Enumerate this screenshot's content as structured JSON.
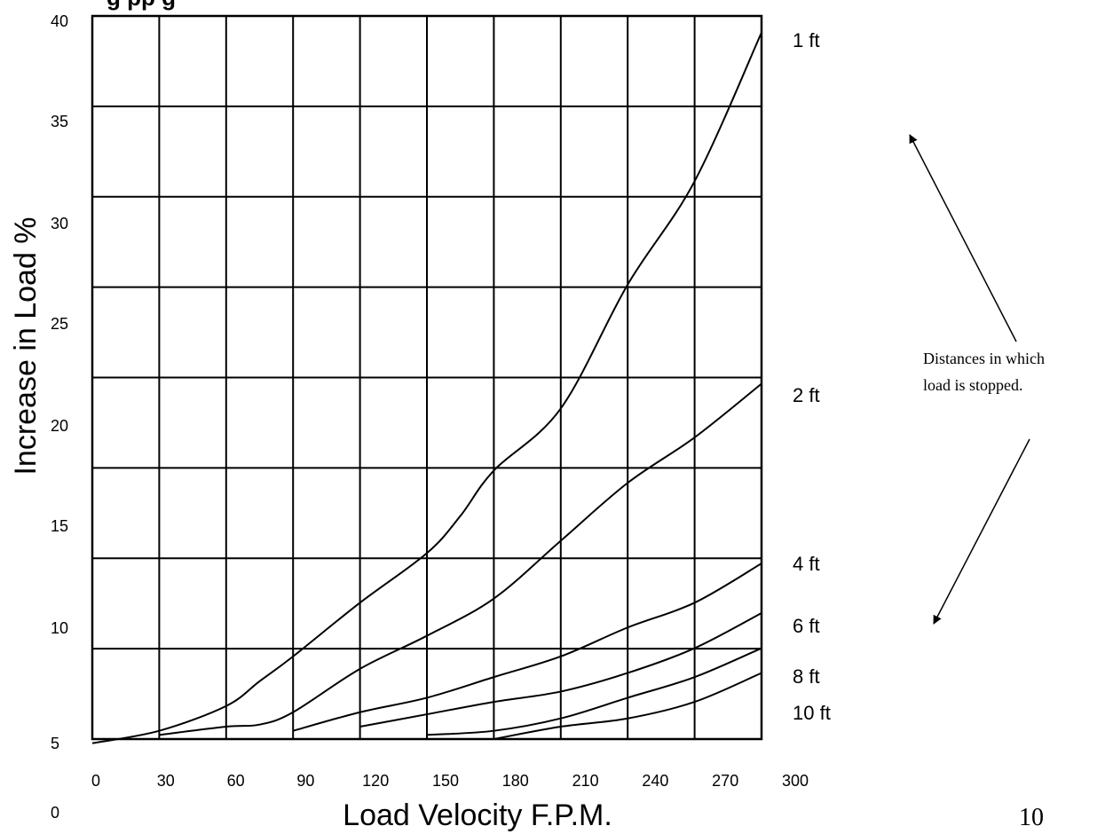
{
  "chart_data": {
    "type": "line",
    "title_fragment": "g   pp g",
    "xlabel": "Load Velocity F.P.M.",
    "ylabel": "Increase in Load %",
    "x_ticks": [
      "0",
      "30",
      "60",
      "90",
      "120",
      "150",
      "180",
      "210",
      "240",
      "270",
      "300"
    ],
    "y_ticks": [
      "40",
      "35",
      "30",
      "25",
      "20",
      "15",
      "10",
      "5",
      "0"
    ],
    "xlim": [
      0,
      300
    ],
    "y_tick_values": [
      40,
      35,
      30,
      25,
      20,
      15,
      10,
      5,
      0
    ],
    "grid": true,
    "series": [
      {
        "name": "1 ft",
        "x": [
          0,
          30,
          60,
          75,
          90,
          120,
          150,
          165,
          180,
          210,
          240,
          270,
          300
        ],
        "y": [
          4.8,
          5.4,
          6.6,
          7.8,
          9.0,
          11.6,
          14.0,
          15.8,
          18.0,
          21.0,
          27.0,
          32.0,
          39.2
        ]
      },
      {
        "name": "2 ft",
        "x": [
          30,
          60,
          75,
          90,
          120,
          150,
          180,
          210,
          240,
          270,
          300
        ],
        "y": [
          5.2,
          5.6,
          5.7,
          6.3,
          8.4,
          10.0,
          11.8,
          14.6,
          17.4,
          19.6,
          22.2
        ]
      },
      {
        "name": "4 ft",
        "x": [
          90,
          120,
          150,
          180,
          210,
          240,
          270,
          300
        ],
        "y": [
          5.4,
          6.3,
          7.0,
          8.0,
          9.0,
          10.4,
          11.6,
          13.5
        ]
      },
      {
        "name": "6 ft",
        "x": [
          120,
          150,
          180,
          210,
          240,
          270,
          300
        ],
        "y": [
          5.6,
          6.2,
          6.8,
          7.3,
          8.2,
          9.4,
          11.1
        ]
      },
      {
        "name": "8 ft",
        "x": [
          150,
          180,
          210,
          240,
          270,
          300
        ],
        "y": [
          5.2,
          5.4,
          6.0,
          7.0,
          8.0,
          9.4
        ]
      },
      {
        "name": "10 ft",
        "x": [
          180,
          210,
          240,
          270,
          300
        ],
        "y": [
          5.0,
          5.6,
          6.0,
          6.8,
          8.2
        ]
      }
    ]
  },
  "annotation": {
    "line1": "Distances in which",
    "line2": "load is stopped."
  },
  "page_number": "10"
}
